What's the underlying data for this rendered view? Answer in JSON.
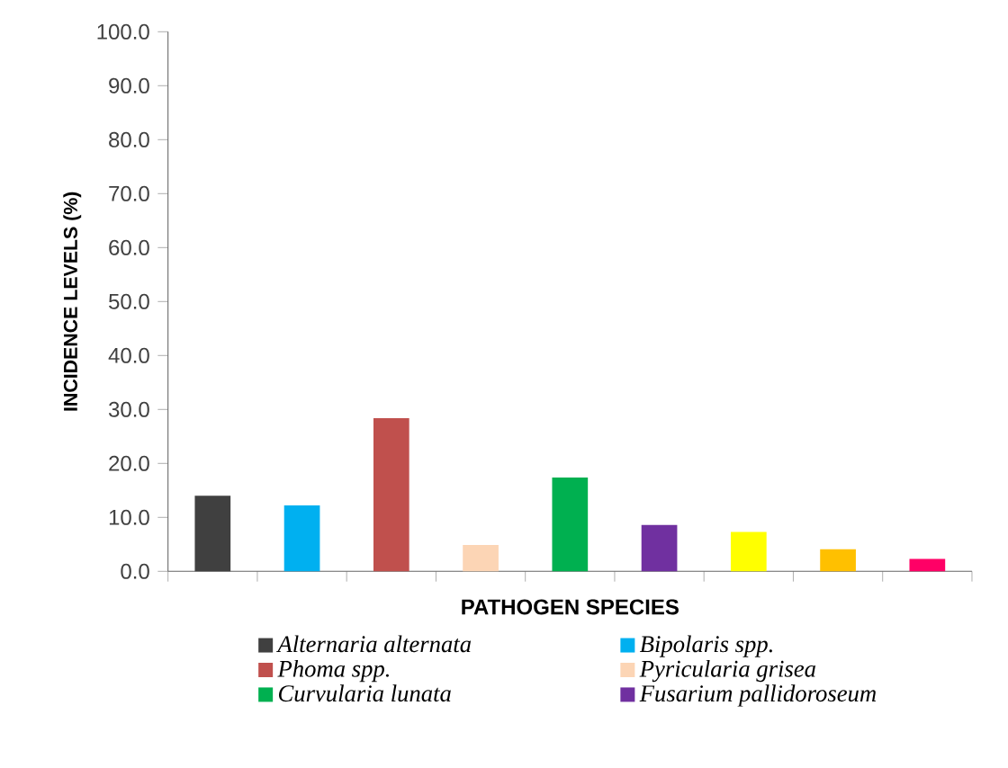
{
  "chart_data": {
    "type": "bar",
    "xlabel": "PATHOGEN SPECIES",
    "ylabel": "INCIDENCE LEVELS (%)",
    "categories": [
      null,
      null,
      null,
      null,
      null,
      null,
      null,
      null,
      null
    ],
    "series": [
      {
        "name": "Alternaria alternata",
        "color": "#404040",
        "values": [
          14.0,
          null,
          null,
          null,
          null,
          null,
          null,
          null,
          null
        ]
      },
      {
        "name": "Bipolaris spp.",
        "color": "#00b0f0",
        "values": [
          null,
          12.2,
          null,
          null,
          null,
          null,
          null,
          null,
          null
        ]
      },
      {
        "name": "Phoma spp.",
        "color": "#c0504d",
        "values": [
          null,
          null,
          28.4,
          null,
          null,
          null,
          null,
          null,
          null
        ]
      },
      {
        "name": "Pyricularia grisea",
        "color": "#fcd5b5",
        "values": [
          null,
          null,
          null,
          4.9,
          null,
          null,
          null,
          null,
          null
        ]
      },
      {
        "name": "Curvularia lunata",
        "color": "#00b050",
        "values": [
          null,
          null,
          null,
          null,
          17.4,
          null,
          null,
          null,
          null
        ]
      },
      {
        "name": "Fusarium pallidoroseum",
        "color": "#7030a0",
        "values": [
          null,
          null,
          null,
          null,
          null,
          8.6,
          null,
          null,
          null
        ]
      },
      {
        "color": "#ffff00",
        "values": [
          null,
          null,
          null,
          null,
          null,
          null,
          7.3,
          null,
          null
        ]
      },
      {
        "color": "#ffc000",
        "values": [
          null,
          null,
          null,
          null,
          null,
          null,
          null,
          4.1,
          null
        ]
      },
      {
        "color": "#ff0066",
        "values": [
          null,
          null,
          null,
          null,
          null,
          null,
          null,
          null,
          2.3
        ]
      }
    ],
    "ylim": [
      0,
      100
    ],
    "yticks": [
      {
        "value": 0,
        "label": "0.0"
      },
      {
        "value": 10,
        "label": "10.0"
      },
      {
        "value": 20,
        "label": "20.0"
      },
      {
        "value": 30,
        "label": "30.0"
      },
      {
        "value": 40,
        "label": "40.0"
      },
      {
        "value": 50,
        "label": "50.0"
      },
      {
        "value": 60,
        "label": "60.0"
      },
      {
        "value": 70,
        "label": "70.0"
      },
      {
        "value": 80,
        "label": "80.0"
      },
      {
        "value": 90,
        "label": "90.0"
      },
      {
        "value": 100,
        "label": "100.0"
      }
    ],
    "grid": false,
    "legend": "bottom"
  }
}
